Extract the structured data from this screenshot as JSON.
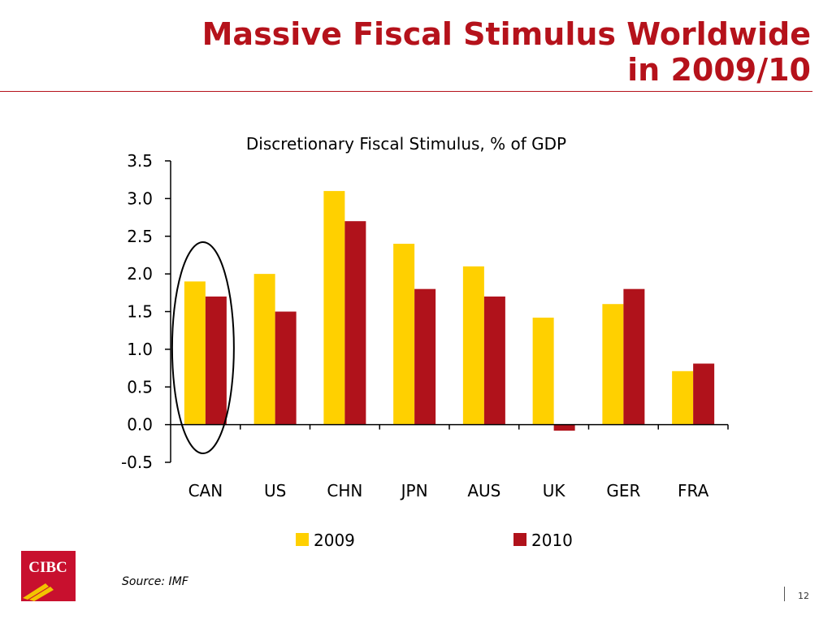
{
  "slide": {
    "title_line1": "Massive Fiscal Stimulus Worldwide",
    "title_line2": "in 2009/10",
    "source": "Source: IMF",
    "page_number": "12",
    "logo_text": "CIBC"
  },
  "colors": {
    "title": "#b5121b",
    "series_2009": "#ffd000",
    "series_2010": "#b0121b",
    "highlight_ellipse": "#000000"
  },
  "chart_data": {
    "type": "bar",
    "title": "Discretionary Fiscal Stimulus, % of GDP",
    "xlabel": "",
    "ylabel": "",
    "categories": [
      "CAN",
      "US",
      "CHN",
      "JPN",
      "AUS",
      "UK",
      "GER",
      "FRA"
    ],
    "series": [
      {
        "name": "2009",
        "color": "#ffd000",
        "values": [
          1.9,
          2.0,
          3.1,
          2.4,
          2.1,
          1.42,
          1.6,
          0.71
        ]
      },
      {
        "name": "2010",
        "color": "#b0121b",
        "values": [
          1.7,
          1.5,
          2.7,
          1.8,
          1.7,
          -0.08,
          1.8,
          0.81
        ]
      }
    ],
    "ylim": [
      -0.5,
      3.5
    ],
    "yticks": [
      "3.5",
      "3.0",
      "2.5",
      "2.0",
      "1.5",
      "1.0",
      "0.5",
      "0.0",
      "-0.5"
    ],
    "ytick_values": [
      3.5,
      3.0,
      2.5,
      2.0,
      1.5,
      1.0,
      0.5,
      0.0,
      -0.5
    ],
    "grid": false,
    "legend": "bottom",
    "annotations": [
      {
        "kind": "ellipse",
        "category": "CAN",
        "note": "highlighted"
      }
    ]
  }
}
